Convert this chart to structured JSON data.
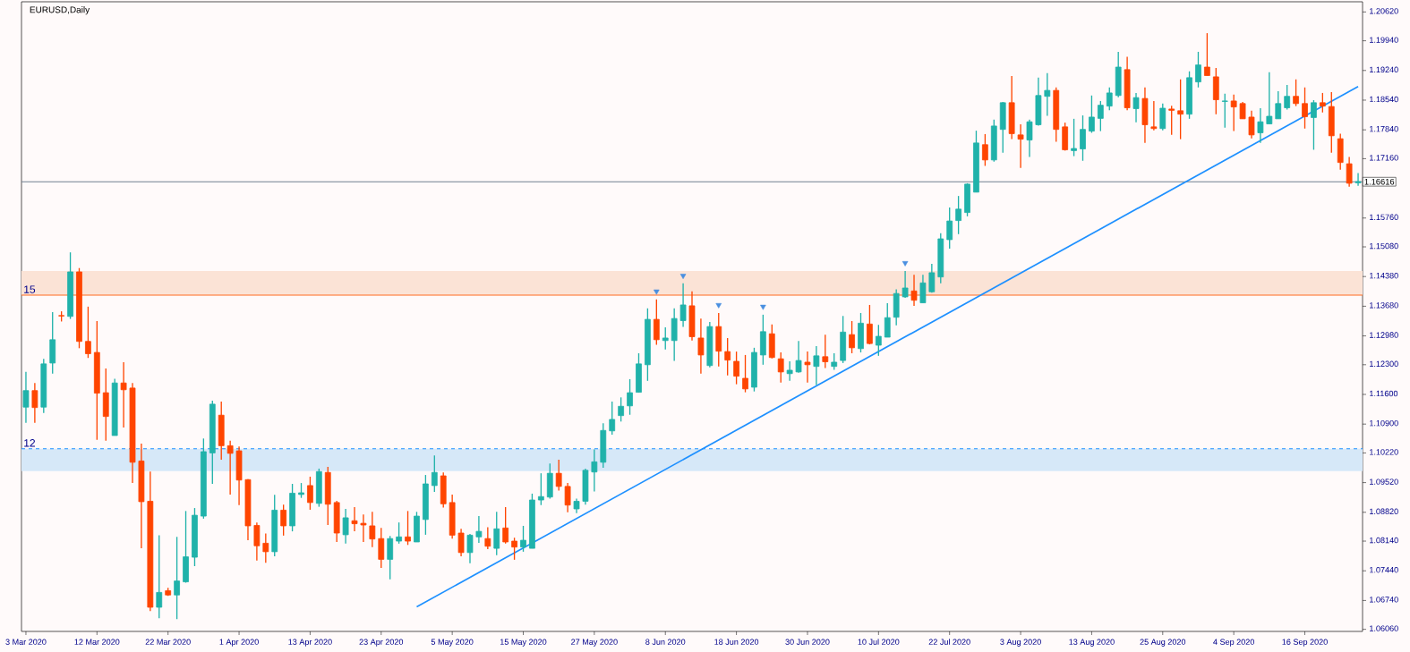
{
  "chart_data": {
    "type": "candlestick",
    "title": "EURUSD,Daily",
    "categories": [
      "3 Mar 2020",
      null,
      null,
      null,
      null,
      null,
      null,
      null,
      "12 Mar 2020",
      null,
      null,
      null,
      null,
      null,
      null,
      null,
      "22 Mar 2020",
      null,
      null,
      null,
      null,
      null,
      null,
      null,
      "1 Apr 2020",
      null,
      null,
      null,
      null,
      null,
      null,
      null,
      "13 Apr 2020",
      null,
      null,
      null,
      null,
      null,
      null,
      null,
      "23 Apr 2020",
      null,
      null,
      null,
      null,
      null,
      null,
      null,
      "5 May 2020",
      null,
      null,
      null,
      null,
      null,
      null,
      null,
      "15 May 2020",
      null,
      null,
      null,
      null,
      null,
      null,
      null,
      "27 May 2020",
      null,
      null,
      null,
      null,
      null,
      null,
      null,
      "8 Jun 2020",
      null,
      null,
      null,
      null,
      null,
      null,
      null,
      "18 Jun 2020",
      null,
      null,
      null,
      null,
      null,
      null,
      null,
      "30 Jun 2020",
      null,
      null,
      null,
      null,
      null,
      null,
      null,
      "10 Jul 2020",
      null,
      null,
      null,
      null,
      null,
      null,
      null,
      "22 Jul 2020",
      null,
      null,
      null,
      null,
      null,
      null,
      null,
      "3 Aug 2020",
      null,
      null,
      null,
      null,
      null,
      null,
      null,
      "13 Aug 2020",
      null,
      null,
      null,
      null,
      null,
      null,
      null,
      "25 Aug 2020",
      null,
      null,
      null,
      null,
      null,
      null,
      null,
      "4 Sep 2020",
      null,
      null,
      null,
      null,
      null,
      null,
      null,
      "16 Sep 2020",
      null,
      null,
      null,
      null,
      null,
      null
    ],
    "ohlc": [
      [
        1.113,
        1.1213,
        1.1093,
        1.1169
      ],
      [
        1.1169,
        1.1187,
        1.1093,
        1.1129
      ],
      [
        1.113,
        1.1244,
        1.1116,
        1.1232
      ],
      [
        1.1234,
        1.1354,
        1.1209,
        1.1289
      ],
      [
        1.1346,
        1.1356,
        1.1332,
        1.1345
      ],
      [
        1.1344,
        1.1495,
        1.1338,
        1.1449
      ],
      [
        1.1449,
        1.1458,
        1.1269,
        1.1285
      ],
      [
        1.1285,
        1.1367,
        1.1246,
        1.1256
      ],
      [
        1.1259,
        1.1333,
        1.1053,
        1.1163
      ],
      [
        1.1164,
        1.1221,
        1.1051,
        1.1108
      ],
      [
        1.1063,
        1.1197,
        1.1063,
        1.1187
      ],
      [
        1.1187,
        1.1236,
        1.1082,
        1.1171
      ],
      [
        1.1175,
        1.1187,
        1.0951,
        1.1
      ],
      [
        1.1003,
        1.1044,
        1.0797,
        1.0907
      ],
      [
        1.0908,
        1.0978,
        1.0649,
        1.0658
      ],
      [
        1.0658,
        1.0828,
        1.0632,
        1.0693
      ],
      [
        1.0697,
        1.0704,
        1.0685,
        1.0687
      ],
      [
        1.0687,
        1.0824,
        1.063,
        1.072
      ],
      [
        1.0718,
        1.0885,
        1.0716,
        1.0777
      ],
      [
        1.0776,
        1.0892,
        1.0755,
        1.0875
      ],
      [
        1.0873,
        1.1056,
        1.0867,
        1.1025
      ],
      [
        1.1022,
        1.1145,
        1.0949,
        1.1137
      ],
      [
        1.1111,
        1.1143,
        1.1006,
        1.1039
      ],
      [
        1.1039,
        1.1051,
        1.0924,
        1.1021
      ],
      [
        1.1027,
        1.1037,
        1.0899,
        1.0958
      ],
      [
        1.0959,
        1.096,
        1.0816,
        1.085
      ],
      [
        1.0851,
        1.0858,
        1.0768,
        1.0803
      ],
      [
        1.0809,
        1.0832,
        1.0763,
        1.0789
      ],
      [
        1.0789,
        1.0923,
        1.0778,
        1.0887
      ],
      [
        1.0887,
        1.09,
        1.0827,
        1.085
      ],
      [
        1.085,
        1.0949,
        1.0837,
        1.0927
      ],
      [
        1.0924,
        1.0951,
        1.0916,
        1.0928
      ],
      [
        1.0945,
        1.0966,
        1.0888,
        1.0905
      ],
      [
        1.0903,
        1.0985,
        1.0895,
        1.0978
      ],
      [
        1.0976,
        1.0989,
        1.0852,
        1.0901
      ],
      [
        1.0905,
        1.0909,
        1.0812,
        1.0833
      ],
      [
        1.0829,
        1.089,
        1.0808,
        1.0869
      ],
      [
        1.0862,
        1.0894,
        1.0837,
        1.0855
      ],
      [
        1.0856,
        1.0877,
        1.0812,
        1.0852
      ],
      [
        1.085,
        1.0883,
        1.08,
        1.0819
      ],
      [
        1.082,
        1.0845,
        1.0751,
        1.0771
      ],
      [
        1.0771,
        1.0826,
        1.0724,
        1.082
      ],
      [
        1.0814,
        1.0858,
        1.0808,
        1.0824
      ],
      [
        1.0824,
        1.0885,
        1.0805,
        1.0814
      ],
      [
        1.0812,
        1.0883,
        1.0812,
        1.0873
      ],
      [
        1.0865,
        1.097,
        1.0829,
        1.0949
      ],
      [
        1.0945,
        1.1016,
        1.093,
        1.0976
      ],
      [
        1.0968,
        1.0976,
        1.0893,
        1.0902
      ],
      [
        1.0905,
        1.0924,
        1.082,
        1.0828
      ],
      [
        1.0833,
        1.0843,
        1.0778,
        1.0787
      ],
      [
        1.0787,
        1.0831,
        1.0762,
        1.0828
      ],
      [
        1.0824,
        1.0873,
        1.081,
        1.0837
      ],
      [
        1.082,
        1.0847,
        1.0795,
        1.0802
      ],
      [
        1.0797,
        1.0883,
        1.0781,
        1.0843
      ],
      [
        1.0845,
        1.0894,
        1.0808,
        1.0812
      ],
      [
        1.0814,
        1.0822,
        1.077,
        1.08
      ],
      [
        1.08,
        1.085,
        1.0789,
        1.0816
      ],
      [
        1.0797,
        1.0926,
        1.0797,
        1.0911
      ],
      [
        1.0911,
        1.0974,
        1.0899,
        1.0919
      ],
      [
        1.0918,
        1.0997,
        1.0914,
        1.0974
      ],
      [
        1.0974,
        1.1006,
        1.0933,
        1.0943
      ],
      [
        1.0943,
        1.0951,
        1.0882,
        1.0899
      ],
      [
        1.089,
        1.0914,
        1.088,
        1.0908
      ],
      [
        1.0908,
        1.0985,
        1.09,
        1.0981
      ],
      [
        1.0977,
        1.103,
        1.0931,
        1.1001
      ],
      [
        1.1,
        1.1092,
        1.0987,
        1.1075
      ],
      [
        1.1074,
        1.1143,
        1.1065,
        1.1101
      ],
      [
        1.111,
        1.1153,
        1.1096,
        1.1132
      ],
      [
        1.1133,
        1.1196,
        1.1112,
        1.1164
      ],
      [
        1.1165,
        1.1257,
        1.1165,
        1.1232
      ],
      [
        1.123,
        1.1363,
        1.1192,
        1.1337
      ],
      [
        1.1337,
        1.1384,
        1.1277,
        1.1289
      ],
      [
        1.1287,
        1.1318,
        1.1266,
        1.1293
      ],
      [
        1.1287,
        1.1363,
        1.1239,
        1.1339
      ],
      [
        1.1334,
        1.1422,
        1.1319,
        1.1371
      ],
      [
        1.1369,
        1.1403,
        1.1287,
        1.1296
      ],
      [
        1.1293,
        1.1339,
        1.1209,
        1.1253
      ],
      [
        1.1228,
        1.1331,
        1.1224,
        1.132
      ],
      [
        1.132,
        1.1352,
        1.1226,
        1.1262
      ],
      [
        1.1261,
        1.1293,
        1.1205,
        1.1241
      ],
      [
        1.1238,
        1.1261,
        1.1184,
        1.1203
      ],
      [
        1.1198,
        1.1253,
        1.1165,
        1.1173
      ],
      [
        1.1177,
        1.127,
        1.1167,
        1.1259
      ],
      [
        1.1253,
        1.1348,
        1.123,
        1.1308
      ],
      [
        1.1303,
        1.1325,
        1.1245,
        1.1247
      ],
      [
        1.1244,
        1.1259,
        1.1188,
        1.1213
      ],
      [
        1.1209,
        1.1238,
        1.1192,
        1.1217
      ],
      [
        1.1213,
        1.1286,
        1.1211,
        1.124
      ],
      [
        1.1236,
        1.1261,
        1.1188,
        1.123
      ],
      [
        1.1226,
        1.1274,
        1.1182,
        1.1251
      ],
      [
        1.1249,
        1.1301,
        1.1222,
        1.1237
      ],
      [
        1.1226,
        1.1257,
        1.1218,
        1.1236
      ],
      [
        1.124,
        1.1345,
        1.1234,
        1.1307
      ],
      [
        1.1301,
        1.1333,
        1.1257,
        1.127
      ],
      [
        1.1268,
        1.1352,
        1.1259,
        1.1328
      ],
      [
        1.1326,
        1.1371,
        1.1278,
        1.128
      ],
      [
        1.1276,
        1.1324,
        1.1251,
        1.1297
      ],
      [
        1.1295,
        1.1375,
        1.1295,
        1.1341
      ],
      [
        1.1342,
        1.1408,
        1.1323,
        1.1398
      ],
      [
        1.139,
        1.1451,
        1.1388,
        1.1411
      ],
      [
        1.1404,
        1.1442,
        1.1369,
        1.1382
      ],
      [
        1.1376,
        1.1442,
        1.1376,
        1.1423
      ],
      [
        1.1402,
        1.1468,
        1.14,
        1.1447
      ],
      [
        1.1437,
        1.154,
        1.1422,
        1.1527
      ],
      [
        1.1525,
        1.1601,
        1.1504,
        1.1569
      ],
      [
        1.157,
        1.1628,
        1.1538,
        1.1597
      ],
      [
        1.1589,
        1.1658,
        1.158,
        1.1656
      ],
      [
        1.1637,
        1.1782,
        1.1637,
        1.1753
      ],
      [
        1.1749,
        1.1774,
        1.1699,
        1.1713
      ],
      [
        1.1713,
        1.1808,
        1.1709,
        1.1793
      ],
      [
        1.1785,
        1.185,
        1.173,
        1.1848
      ],
      [
        1.1848,
        1.1911,
        1.1762,
        1.1775
      ],
      [
        1.1772,
        1.1797,
        1.1694,
        1.1762
      ],
      [
        1.176,
        1.1808,
        1.172,
        1.1803
      ],
      [
        1.1796,
        1.1907,
        1.1794,
        1.1865
      ],
      [
        1.1863,
        1.1918,
        1.1817,
        1.1877
      ],
      [
        1.1877,
        1.1884,
        1.1756,
        1.1785
      ],
      [
        1.1791,
        1.1801,
        1.1735,
        1.1737
      ],
      [
        1.1735,
        1.181,
        1.1722,
        1.174
      ],
      [
        1.1739,
        1.1818,
        1.1711,
        1.1785
      ],
      [
        1.1781,
        1.1865,
        1.1777,
        1.1814
      ],
      [
        1.1811,
        1.1852,
        1.1781,
        1.1842
      ],
      [
        1.184,
        1.1884,
        1.183,
        1.1871
      ],
      [
        1.1865,
        1.1968,
        1.1861,
        1.1932
      ],
      [
        1.1926,
        1.1956,
        1.183,
        1.1836
      ],
      [
        1.1834,
        1.1871,
        1.1802,
        1.186
      ],
      [
        1.1858,
        1.1884,
        1.1753,
        1.1796
      ],
      [
        1.1791,
        1.1852,
        1.1783,
        1.1787
      ],
      [
        1.1787,
        1.1846,
        1.1783,
        1.1835
      ],
      [
        1.1833,
        1.1841,
        1.1772,
        1.183
      ],
      [
        1.1829,
        1.1903,
        1.1762,
        1.1821
      ],
      [
        1.1821,
        1.1922,
        1.181,
        1.1907
      ],
      [
        1.1897,
        1.1968,
        1.1884,
        1.1937
      ],
      [
        1.1932,
        1.2012,
        1.1912,
        1.1912
      ],
      [
        1.1909,
        1.193,
        1.1821,
        1.1855
      ],
      [
        1.1851,
        1.1869,
        1.1789,
        1.1852
      ],
      [
        1.1852,
        1.1867,
        1.1781,
        1.1838
      ],
      [
        1.1846,
        1.185,
        1.181,
        1.181
      ],
      [
        1.1814,
        1.1829,
        1.1764,
        1.1772
      ],
      [
        1.1777,
        1.1835,
        1.1753,
        1.1803
      ],
      [
        1.1798,
        1.192,
        1.1798,
        1.1816
      ],
      [
        1.181,
        1.1875,
        1.181,
        1.1846
      ],
      [
        1.1836,
        1.189,
        1.1832,
        1.1863
      ],
      [
        1.1863,
        1.1903,
        1.184,
        1.1846
      ],
      [
        1.1846,
        1.1884,
        1.1787,
        1.1815
      ],
      [
        1.1813,
        1.1854,
        1.1737,
        1.1848
      ],
      [
        1.1848,
        1.1871,
        1.1825,
        1.184
      ],
      [
        1.1839,
        1.1873,
        1.173,
        1.177
      ],
      [
        1.1763,
        1.1775,
        1.169,
        1.1707
      ],
      [
        1.1704,
        1.172,
        1.165,
        1.1658
      ],
      [
        1.1659,
        1.1682,
        1.1652,
        1.1662
      ]
    ],
    "colors": [
      "#20b2aa",
      "#ff4500",
      "#20b2aa",
      "#20b2aa",
      "#ff4500",
      "#20b2aa",
      "#ff4500",
      "#ff4500",
      "#ff4500",
      "#ff4500",
      "#20b2aa",
      "#ff4500",
      "#ff4500",
      "#ff4500",
      "#ff4500",
      "#20b2aa",
      "#ff4500",
      "#20b2aa",
      "#20b2aa",
      "#20b2aa",
      "#20b2aa",
      "#20b2aa",
      "#ff4500",
      "#ff4500",
      "#ff4500",
      "#ff4500",
      "#ff4500",
      "#ff4500",
      "#20b2aa",
      "#ff4500",
      "#20b2aa",
      "#20b2aa",
      "#ff4500",
      "#20b2aa",
      "#ff4500",
      "#ff4500",
      "#20b2aa",
      "#ff4500",
      "#ff4500",
      "#ff4500",
      "#ff4500",
      "#20b2aa",
      "#20b2aa",
      "#ff4500",
      "#20b2aa",
      "#20b2aa",
      "#20b2aa",
      "#ff4500",
      "#ff4500",
      "#ff4500",
      "#20b2aa",
      "#20b2aa",
      "#ff4500",
      "#20b2aa",
      "#ff4500",
      "#ff4500",
      "#20b2aa",
      "#20b2aa",
      "#20b2aa",
      "#20b2aa",
      "#ff4500",
      "#ff4500",
      "#20b2aa",
      "#20b2aa",
      "#20b2aa",
      "#20b2aa",
      "#20b2aa",
      "#20b2aa",
      "#20b2aa",
      "#20b2aa",
      "#20b2aa",
      "#ff4500",
      "#20b2aa",
      "#20b2aa",
      "#20b2aa",
      "#ff4500",
      "#ff4500",
      "#20b2aa",
      "#ff4500",
      "#ff4500",
      "#ff4500",
      "#ff4500",
      "#20b2aa",
      "#20b2aa",
      "#ff4500",
      "#ff4500",
      "#20b2aa",
      "#20b2aa",
      "#ff4500",
      "#20b2aa",
      "#ff4500",
      "#20b2aa",
      "#20b2aa",
      "#ff4500",
      "#20b2aa",
      "#ff4500",
      "#20b2aa",
      "#20b2aa",
      "#20b2aa",
      "#20b2aa",
      "#ff4500",
      "#20b2aa",
      "#20b2aa",
      "#20b2aa",
      "#20b2aa",
      "#20b2aa",
      "#20b2aa",
      "#20b2aa",
      "#ff4500",
      "#20b2aa",
      "#20b2aa",
      "#ff4500",
      "#ff4500",
      "#20b2aa",
      "#20b2aa",
      "#20b2aa",
      "#ff4500",
      "#ff4500",
      "#20b2aa",
      "#20b2aa",
      "#20b2aa",
      "#20b2aa",
      "#20b2aa",
      "#20b2aa",
      "#ff4500",
      "#20b2aa",
      "#ff4500",
      "#ff4500",
      "#20b2aa",
      "#ff4500",
      "#ff4500",
      "#20b2aa",
      "#20b2aa",
      "#ff4500",
      "#ff4500",
      "#20b2aa",
      "#ff4500",
      "#ff4500",
      "#ff4500",
      "#20b2aa",
      "#20b2aa",
      "#20b2aa",
      "#20b2aa",
      "#ff4500",
      "#ff4500",
      "#20b2aa",
      "#ff4500",
      "#ff4500",
      "#ff4500",
      "#ff4500",
      "#20b2aa"
    ],
    "series": [
      {
        "type": "line",
        "color": "#1e90ff",
        "values": [
          null,
          null,
          null,
          null,
          null,
          null,
          null,
          null,
          null,
          null,
          null,
          null,
          null,
          null,
          null,
          null,
          null,
          null,
          null,
          null,
          null,
          null,
          null,
          null,
          null,
          null,
          null,
          null,
          null,
          null,
          null,
          null,
          null,
          null,
          null,
          null,
          null,
          null,
          null,
          null,
          null,
          null,
          null,
          null,
          1.0659,
          null,
          null,
          null,
          null,
          null,
          null,
          null,
          null,
          null,
          null,
          null,
          null,
          null,
          null,
          null,
          null,
          null,
          null,
          null,
          null,
          null,
          null,
          null,
          null,
          null,
          null,
          null,
          null,
          null,
          null,
          null,
          null,
          null,
          null,
          null,
          null,
          null,
          null,
          null,
          null,
          null,
          null,
          null,
          null,
          null,
          null,
          null,
          null,
          null,
          null,
          null,
          null,
          null,
          null,
          null,
          null,
          null,
          null,
          null,
          null,
          null,
          null,
          null,
          null,
          null,
          null,
          null,
          null,
          null,
          null,
          null,
          null,
          null,
          null,
          null,
          null,
          null,
          null,
          null,
          null,
          null,
          null,
          null,
          null,
          null,
          null,
          null,
          null,
          null,
          null,
          null,
          null,
          null,
          null,
          null,
          null,
          null,
          null,
          null,
          null,
          null,
          null,
          null,
          null,
          null,
          1.1886
        ]
      },
      {
        "type": "scatter",
        "color": "#4a8fe0",
        "marker": "triangle",
        "values": [
          null,
          null,
          null,
          null,
          null,
          null,
          null,
          null,
          null,
          null,
          null,
          null,
          null,
          null,
          null,
          null,
          null,
          null,
          null,
          null,
          null,
          null,
          null,
          null,
          null,
          null,
          null,
          null,
          null,
          null,
          null,
          null,
          null,
          null,
          null,
          null,
          null,
          null,
          null,
          null,
          null,
          null,
          null,
          null,
          null,
          null,
          null,
          null,
          null,
          null,
          null,
          null,
          null,
          null,
          null,
          null,
          null,
          null,
          null,
          null,
          null,
          null,
          null,
          null,
          null,
          null,
          null,
          null,
          null,
          null,
          null,
          1.1403,
          null,
          null,
          1.144,
          null,
          null,
          null,
          1.1371,
          null,
          null,
          null,
          null,
          1.1367,
          null,
          null,
          null,
          null,
          null,
          null,
          null,
          null,
          null,
          null,
          null,
          null,
          null,
          null,
          null,
          1.147,
          null,
          null,
          null,
          null,
          null,
          null,
          null,
          null,
          null,
          null,
          null,
          null,
          null,
          null,
          null,
          null,
          null,
          null,
          null,
          null,
          null,
          null,
          null,
          null,
          null,
          null,
          null,
          null,
          null,
          null,
          null,
          null,
          null,
          null,
          null,
          null,
          null,
          null,
          null,
          null,
          null,
          null,
          null,
          null,
          null,
          null,
          null,
          null,
          null,
          null,
          null
        ]
      }
    ],
    "bands": [
      {
        "axis": "y",
        "from": 1.1394,
        "to": 1.1451,
        "color": "#fbe3d6"
      },
      {
        "axis": "y",
        "from": 1.0979,
        "to": 1.1032,
        "color": "#d6e8f8"
      }
    ],
    "ref_lines": [
      {
        "axis": "y",
        "value": 1.1394,
        "color": "#ff6a1f",
        "line_style": "solid"
      },
      {
        "axis": "y",
        "value": 1.1032,
        "color": "#1e90ff",
        "line_style": "dashed"
      },
      {
        "axis": "y",
        "value": 1.16616,
        "label": "1.16616",
        "color": "#708090",
        "line_style": "solid"
      }
    ],
    "annotations": [
      {
        "text": "15",
        "y": 1.1394
      },
      {
        "text": "12",
        "y": 1.1032
      }
    ],
    "ylim": [
      1.0601,
      1.2086
    ],
    "yticks": [
      {
        "value": 1.2062,
        "label": "1.20620"
      },
      {
        "value": 1.1994,
        "label": "1.19940"
      },
      {
        "value": 1.1924,
        "label": "1.19240"
      },
      {
        "value": 1.1854,
        "label": "1.18540"
      },
      {
        "value": 1.1784,
        "label": "1.17840"
      },
      {
        "value": 1.1716,
        "label": "1.17160"
      },
      {
        "value": 1.1576,
        "label": "1.15760"
      },
      {
        "value": 1.1508,
        "label": "1.15080"
      },
      {
        "value": 1.1438,
        "label": "1.14380"
      },
      {
        "value": 1.1368,
        "label": "1.13680"
      },
      {
        "value": 1.1298,
        "label": "1.12980"
      },
      {
        "value": 1.123,
        "label": "1.12300"
      },
      {
        "value": 1.116,
        "label": "1.11600"
      },
      {
        "value": 1.109,
        "label": "1.10900"
      },
      {
        "value": 1.1022,
        "label": "1.10220"
      },
      {
        "value": 1.0952,
        "label": "1.09520"
      },
      {
        "value": 1.0882,
        "label": "1.08820"
      },
      {
        "value": 1.0814,
        "label": "1.08140"
      },
      {
        "value": 1.0744,
        "label": "1.07440"
      },
      {
        "value": 1.0674,
        "label": "1.06740"
      },
      {
        "value": 1.0606,
        "label": "1.06060"
      }
    ]
  }
}
